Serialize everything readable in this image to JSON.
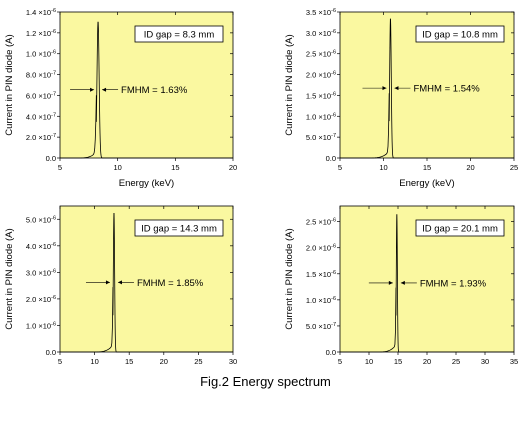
{
  "caption": "Fig.2 Energy spectrum",
  "colors": {
    "plot_bg": "#faf8a0",
    "line": "#000000",
    "box_bg": "#ffffff"
  },
  "chart_data": [
    {
      "type": "line",
      "annotation_box": "ID gap = 8.3 mm",
      "annotation_fwhm": "FMHM = 1.63%",
      "xlabel": "Energy (keV)",
      "ylabel": "Current in PIN diode (A)",
      "xlim": [
        5,
        20
      ],
      "ylim": [
        0,
        1.4e-06
      ],
      "xticks": [
        5,
        10,
        15,
        20
      ],
      "xtick_labels": [
        "5",
        "10",
        "15",
        "20"
      ],
      "yticks": [
        0,
        2e-07,
        4e-07,
        6e-07,
        8e-07,
        1e-06,
        1.2e-06,
        1.4e-06
      ],
      "ytick_labels": [
        "0.0",
        "2.0 x10-7",
        "4.0 x10-7",
        "6.0 x10-7",
        "8.0 x10-7",
        "1.0 x10-6",
        "1.2 x10-6",
        "1.4 x10-6"
      ],
      "peak_x": 8.3,
      "peak_y": 1.31e-06,
      "onset_x": 6.3
    },
    {
      "type": "line",
      "annotation_box": "ID gap = 10.8 mm",
      "annotation_fwhm": "FMHM = 1.54%",
      "xlabel": "Energy (keV)",
      "ylabel": "Current in PIN diode (A)",
      "xlim": [
        5,
        25
      ],
      "ylim": [
        0,
        3.5e-06
      ],
      "xticks": [
        5,
        10,
        15,
        20,
        25
      ],
      "xtick_labels": [
        "5",
        "10",
        "15",
        "20",
        "25"
      ],
      "yticks": [
        0,
        5e-07,
        1e-06,
        1.5e-06,
        2e-06,
        2.5e-06,
        3e-06,
        3.5e-06
      ],
      "ytick_labels": [
        "0.0",
        "5.0 x10-7",
        "1.0 x10-6",
        "1.5 x10-6",
        "2.0 x10-6",
        "2.5 x10-6",
        "3.0 x10-6",
        "3.5 x10-6"
      ],
      "peak_x": 10.8,
      "peak_y": 3.35e-06,
      "onset_x": 8.0
    },
    {
      "type": "line",
      "annotation_box": "ID gap = 14.3 mm",
      "annotation_fwhm": "FMHM = 1.85%",
      "xlabel": "Energy (keV)",
      "ylabel": "Current in PIN diode (A)",
      "xlim": [
        5,
        30
      ],
      "ylim": [
        0,
        5.5e-06
      ],
      "xticks": [
        5,
        10,
        15,
        20,
        25,
        30
      ],
      "xtick_labels": [
        "5",
        "10",
        "15",
        "20",
        "25",
        "30"
      ],
      "yticks": [
        0,
        1e-06,
        2e-06,
        3e-06,
        4e-06,
        5e-06
      ],
      "ytick_labels": [
        "0.0",
        "1.0 x10-6",
        "2.0 x10-6",
        "3.0 x10-6",
        "4.0 x10-6",
        "5.0 x10-6"
      ],
      "peak_x": 12.8,
      "peak_y": 5.25e-06,
      "onset_x": 9.5
    },
    {
      "type": "line",
      "annotation_box": "ID gap = 20.1 mm",
      "annotation_fwhm": "FMHM = 1.93%",
      "xlabel": "Energy (keV)",
      "ylabel": "Current in PIN diode (A)",
      "xlim": [
        5,
        35
      ],
      "ylim": [
        0,
        2.8e-06
      ],
      "xticks": [
        5,
        10,
        15,
        20,
        25,
        30,
        35
      ],
      "xtick_labels": [
        "5",
        "10",
        "15",
        "20",
        "25",
        "30",
        "35"
      ],
      "yticks": [
        0,
        5e-07,
        1e-06,
        1.5e-06,
        2e-06,
        2.5e-06
      ],
      "ytick_labels": [
        "0.0",
        "5.0 x10-7",
        "1.0 x10-6",
        "1.5 x10-6",
        "2.0 x10-6",
        "2.5 x10-6"
      ],
      "peak_x": 14.8,
      "peak_y": 2.65e-06,
      "onset_x": 11.0
    }
  ]
}
